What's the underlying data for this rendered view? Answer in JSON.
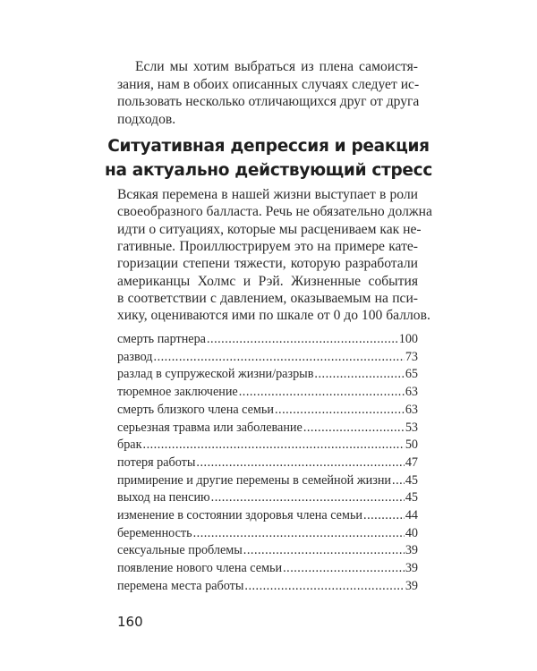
{
  "paragraph1_lines": [
    "Если мы хотим выбраться из плена самоистя-",
    "зания, нам в обоих описанных случаях следует ис-",
    "пользовать несколько отличающихся друг от друга",
    "подходов."
  ],
  "heading_lines": [
    "Ситуативная депрессия и реакция",
    "на актуально действующий стресс"
  ],
  "paragraph2_lines": [
    "Всякая перемена в нашей жизни выступает в роли",
    "своеобразного балласта. Речь не обязательно должна",
    "идти о ситуациях, которые мы расцениваем как не-",
    "гативные. Проиллюстрируем это на примере кате-",
    "горизации степени тяжести, которую разработали",
    "американцы Холмс и Рэй. Жизненные события",
    "в соответствии с давлением, оказываемым на пси-",
    "хику, оцениваются ими по шкале от 0 до 100 баллов."
  ],
  "stress_scale": [
    {
      "event": "смерть партнера",
      "score": "100"
    },
    {
      "event": "развод",
      "score": "73"
    },
    {
      "event": "разлад в супружеской жизни/разрыв",
      "score": "65"
    },
    {
      "event": "тюремное заключение",
      "score": "63"
    },
    {
      "event": "смерть близкого члена семьи",
      "score": "63"
    },
    {
      "event": "серьезная травма или заболевание",
      "score": "53"
    },
    {
      "event": "брак",
      "score": "50"
    },
    {
      "event": "потеря работы",
      "score": "47"
    },
    {
      "event": "примирение и другие перемены в семейной жизни",
      "score": "45"
    },
    {
      "event": "выход на пенсию",
      "score": "45"
    },
    {
      "event": "изменение в состоянии здоровья члена семьи",
      "score": "44"
    },
    {
      "event": "беременность",
      "score": "40"
    },
    {
      "event": "сексуальные проблемы",
      "score": "39"
    },
    {
      "event": "появление нового члена семьи",
      "score": "39"
    },
    {
      "event": "перемена места работы",
      "score": "39"
    }
  ],
  "page_number": "160"
}
